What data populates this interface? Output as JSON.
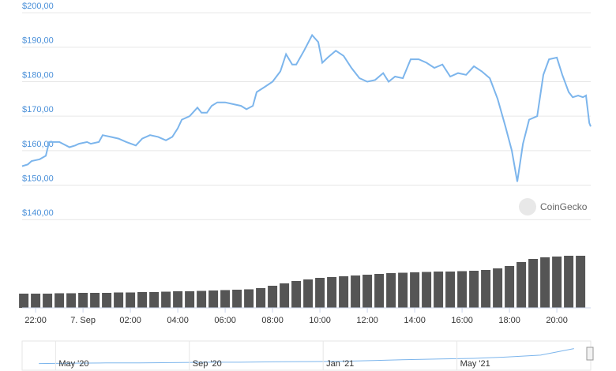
{
  "chart_data": [
    {
      "type": "line",
      "color": "#7cb5ec",
      "watermark": "CoinGecko",
      "x": [
        21.43,
        21.67,
        21.83,
        22.17,
        22.43,
        22.57,
        23.0,
        23.43,
        23.67,
        23.83,
        24.17,
        24.33,
        24.67,
        24.83,
        25.17,
        25.5,
        25.83,
        26.23,
        26.5,
        26.83,
        27.17,
        27.5,
        27.77,
        28.0,
        28.17,
        28.5,
        28.83,
        29.0,
        29.23,
        29.43,
        29.67,
        30.0,
        30.33,
        30.67,
        30.9,
        31.17,
        31.33,
        31.67,
        32.0,
        32.33,
        32.57,
        32.83,
        33.0,
        33.33,
        33.67,
        33.93,
        34.1,
        34.33,
        34.67,
        35.0,
        35.33,
        35.67,
        36.0,
        36.33,
        36.67,
        36.9,
        37.17,
        37.5,
        37.83,
        38.17,
        38.5,
        38.83,
        39.17,
        39.5,
        39.83,
        40.17,
        40.5,
        40.83,
        41.17,
        41.5,
        41.83,
        42.1,
        42.33,
        42.57,
        42.83,
        43.17,
        43.43,
        43.67,
        44.0,
        44.23,
        44.5,
        44.67,
        44.9,
        45.1,
        45.23,
        45.37,
        45.43
      ],
      "values": [
        155.5,
        156,
        157,
        157.5,
        158.5,
        162.5,
        162.5,
        161,
        161.5,
        162,
        162.5,
        162,
        162.5,
        164.5,
        164,
        163.5,
        162.5,
        161.5,
        163.5,
        164.5,
        164,
        163,
        164,
        166.5,
        169,
        170,
        172.5,
        171,
        171,
        173,
        174,
        174,
        173.5,
        173,
        172,
        173,
        177,
        178.5,
        180,
        183,
        188,
        185,
        185,
        189,
        193.5,
        191.5,
        185.5,
        187,
        189,
        187.5,
        184,
        181,
        180,
        180.5,
        182.5,
        180,
        181.5,
        181,
        186.5,
        186.5,
        185.5,
        184,
        185,
        181.5,
        182.5,
        182,
        184.5,
        183,
        181,
        175,
        167,
        160,
        151,
        162,
        169,
        170,
        182,
        186.5,
        187,
        182,
        177,
        175.5,
        176,
        175.5,
        176,
        168,
        167
      ],
      "xlim": [
        21.43,
        45.43
      ],
      "ylim": [
        137.3,
        203.7
      ],
      "grid": true,
      "yticks": [
        {
          "value": 140,
          "label": "$140,00"
        },
        {
          "value": 150,
          "label": "$150,00"
        },
        {
          "value": 160,
          "label": "$160,00"
        },
        {
          "value": 170,
          "label": "$170,00"
        },
        {
          "value": 180,
          "label": "$180,00"
        },
        {
          "value": 190,
          "label": "$190,00"
        },
        {
          "value": 200,
          "label": "$200,00"
        }
      ],
      "xticks": [
        {
          "value": 22,
          "label": "22:00"
        },
        {
          "value": 24,
          "label": "7. Sep"
        },
        {
          "value": 26,
          "label": "02:00"
        },
        {
          "value": 28,
          "label": "04:00"
        },
        {
          "value": 30,
          "label": "06:00"
        },
        {
          "value": 32,
          "label": "08:00"
        },
        {
          "value": 34,
          "label": "10:00"
        },
        {
          "value": 36,
          "label": "12:00"
        },
        {
          "value": 38,
          "label": "14:00"
        },
        {
          "value": 40,
          "label": "16:00"
        },
        {
          "value": 42,
          "label": "18:00"
        },
        {
          "value": 44,
          "label": "20:00"
        }
      ]
    },
    {
      "type": "bar",
      "color": "#555555",
      "x": [
        21.5,
        22,
        22.5,
        23,
        23.5,
        24,
        24.5,
        25,
        25.5,
        26,
        26.5,
        27,
        27.5,
        28,
        28.5,
        29,
        29.5,
        30,
        30.5,
        31,
        31.5,
        32,
        32.5,
        33,
        33.5,
        34,
        34.5,
        35,
        35.5,
        36,
        36.5,
        37,
        37.5,
        38,
        38.5,
        39,
        39.5,
        40,
        40.5,
        41,
        41.5,
        42,
        42.5,
        43,
        43.5,
        44,
        44.5,
        45
      ],
      "values": [
        18,
        18,
        18,
        18.5,
        18.5,
        19,
        19,
        19,
        19.5,
        19.5,
        20,
        20,
        20.5,
        21,
        21,
        21.5,
        22,
        22.5,
        23,
        23.5,
        25,
        28,
        31,
        34,
        36,
        38,
        39,
        40,
        41,
        42,
        43,
        44,
        44.5,
        45,
        45.5,
        46,
        46,
        46.5,
        47,
        48,
        50,
        53,
        58,
        62,
        64,
        65,
        66,
        66
      ],
      "xlim": [
        21.43,
        45.43
      ],
      "ylim": [
        0,
        90
      ]
    },
    {
      "type": "area",
      "color": "#7cb5ec",
      "categories": [
        null,
        "May '20",
        null,
        null,
        null,
        "Sep '20",
        null,
        null,
        null,
        "Jan '21",
        null,
        null,
        null,
        "May '21",
        null,
        null,
        null
      ],
      "values": [
        45,
        48,
        50,
        50,
        52,
        55,
        55,
        58,
        60,
        62,
        68,
        75,
        80,
        85,
        95,
        110,
        160
      ],
      "ylim": [
        0,
        200
      ]
    }
  ]
}
